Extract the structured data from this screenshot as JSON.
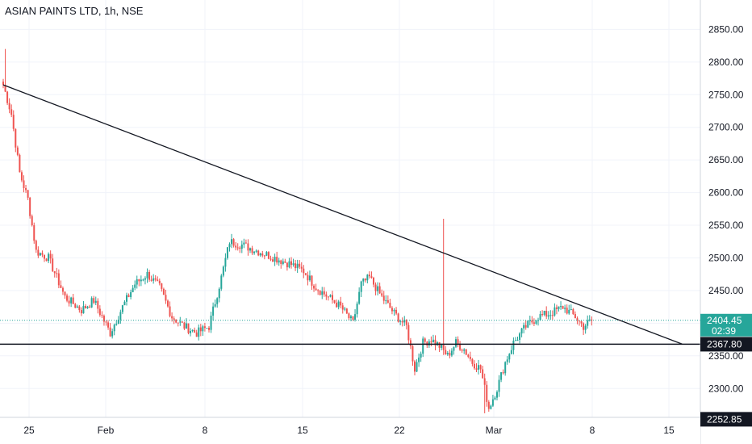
{
  "header": {
    "title": "ASIAN PAINTS LTD, 1h, NSE"
  },
  "chart_data": {
    "type": "candlestick",
    "title": "ASIAN PAINTS LTD, 1h, NSE",
    "ylim": [
      2215,
      2895
    ],
    "y_ticks": [
      2300,
      2350,
      2400,
      2450,
      2500,
      2550,
      2600,
      2650,
      2700,
      2750,
      2800,
      2850
    ],
    "x_ticks": [
      "25",
      "Feb",
      "8",
      "15",
      "22",
      "Mar",
      "8",
      "15"
    ],
    "last_price": {
      "value": 2404.45,
      "label": "2404.45",
      "countdown": "02:39",
      "color": "#26a69a"
    },
    "horizontal_lines": [
      {
        "value": 2367.8,
        "label": "2367.80"
      },
      {
        "value": 2252.85,
        "label": "2252.85"
      }
    ],
    "trendline": {
      "start": {
        "bar": 0,
        "value": 2765
      },
      "end": {
        "bar": 330,
        "value": 2368
      }
    },
    "anchors": [
      [
        0,
        2765
      ],
      [
        4,
        2720
      ],
      [
        8,
        2630
      ],
      [
        12,
        2590
      ],
      [
        16,
        2510
      ],
      [
        22,
        2500
      ],
      [
        30,
        2440
      ],
      [
        38,
        2420
      ],
      [
        44,
        2435
      ],
      [
        52,
        2385
      ],
      [
        58,
        2425
      ],
      [
        64,
        2460
      ],
      [
        70,
        2475
      ],
      [
        76,
        2455
      ],
      [
        82,
        2410
      ],
      [
        88,
        2395
      ],
      [
        94,
        2385
      ],
      [
        100,
        2395
      ],
      [
        106,
        2470
      ],
      [
        110,
        2525
      ],
      [
        116,
        2520
      ],
      [
        124,
        2510
      ],
      [
        132,
        2500
      ],
      [
        140,
        2490
      ],
      [
        146,
        2480
      ],
      [
        152,
        2455
      ],
      [
        158,
        2440
      ],
      [
        164,
        2425
      ],
      [
        170,
        2400
      ],
      [
        174,
        2460
      ],
      [
        178,
        2470
      ],
      [
        184,
        2440
      ],
      [
        190,
        2415
      ],
      [
        196,
        2395
      ],
      [
        200,
        2330
      ],
      [
        204,
        2370
      ],
      [
        208,
        2375
      ],
      [
        212,
        2365
      ],
      [
        216,
        2350
      ],
      [
        220,
        2370
      ],
      [
        224,
        2360
      ],
      [
        228,
        2340
      ],
      [
        232,
        2330
      ],
      [
        236,
        2270
      ],
      [
        240,
        2300
      ],
      [
        244,
        2340
      ],
      [
        248,
        2370
      ],
      [
        254,
        2395
      ],
      [
        260,
        2410
      ],
      [
        266,
        2415
      ],
      [
        272,
        2425
      ],
      [
        278,
        2410
      ],
      [
        282,
        2395
      ],
      [
        284,
        2400
      ],
      [
        286,
        2404.45
      ]
    ],
    "spikes": [
      {
        "bar": 214,
        "value": 2560
      },
      {
        "bar": 1,
        "value": 2820
      },
      {
        "bar": 234,
        "value": 2262
      }
    ],
    "colors": {
      "up": "#26a69a",
      "down": "#ef5350",
      "trendline": "#131722",
      "level": "#131722"
    }
  }
}
